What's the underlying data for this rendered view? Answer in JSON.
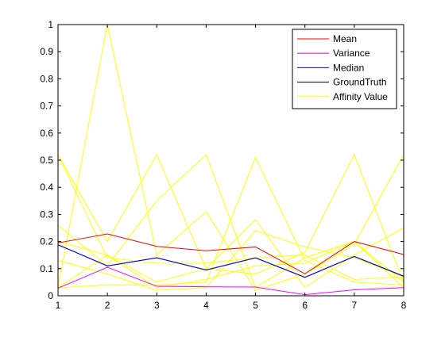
{
  "chart_data": {
    "type": "line",
    "x": [
      1,
      2,
      3,
      4,
      5,
      6,
      7,
      8
    ],
    "xlim": [
      1,
      8
    ],
    "ylim": [
      0,
      1
    ],
    "xticks": [
      1,
      2,
      3,
      4,
      5,
      6,
      7,
      8
    ],
    "yticks": [
      0,
      0.1,
      0.2,
      0.3,
      0.4,
      0.5,
      0.6,
      0.7,
      0.8,
      0.9,
      1
    ],
    "grid": false,
    "legend_position": "top-right",
    "series": [
      {
        "name": "Mean",
        "color": "#ff0000",
        "values": [
          0.195,
          0.228,
          0.182,
          0.166,
          0.18,
          0.081,
          0.2,
          0.152
        ]
      },
      {
        "name": "Variance",
        "color": "#ff00ff",
        "values": [
          0.028,
          0.105,
          0.035,
          0.033,
          0.032,
          0.004,
          0.022,
          0.03
        ]
      },
      {
        "name": "Median",
        "color": "#0000ff",
        "values": [
          0.188,
          0.11,
          0.14,
          0.095,
          0.14,
          0.068,
          0.145,
          0.072
        ]
      },
      {
        "name": "GroundTruth",
        "color": "#000000",
        "values": [
          0.188,
          0.11,
          0.14,
          0.095,
          0.14,
          0.068,
          0.145,
          0.072
        ]
      },
      {
        "name": "Affinity Value",
        "color": "#ffff00",
        "values": [
          0.52,
          0.2,
          0.52,
          0.1,
          0.08,
          0.16,
          0.52,
          0.05
        ]
      }
    ],
    "additional_lines": [
      {
        "color": "#ffff00",
        "values": [
          0.26,
          0.11,
          0.35,
          0.52,
          0.03,
          0.14,
          0.2,
          0.05
        ]
      },
      {
        "color": "#ffff00",
        "values": [
          0.03,
          1.0,
          0.15,
          0.31,
          0.02,
          0.08,
          0.19,
          0.52
        ]
      },
      {
        "color": "#ffff00",
        "values": [
          0.03,
          0.15,
          0.05,
          0.1,
          0.28,
          0.03,
          0.15,
          0.25
        ]
      },
      {
        "color": "#ffff00",
        "values": [
          0.13,
          0.08,
          0.02,
          0.03,
          0.24,
          0.18,
          0.14,
          0.07
        ]
      },
      {
        "color": "#ffff00",
        "values": [
          0.03,
          0.04,
          0.04,
          0.05,
          0.51,
          0.13,
          0.05,
          0.04
        ]
      },
      {
        "color": "#ffff00",
        "values": [
          0.52,
          0.14,
          0.12,
          0.12,
          0.14,
          0.15,
          0.06,
          0.07
        ]
      },
      {
        "color": "#ffff00",
        "values": [
          0.2,
          0.15,
          0.03,
          0.06,
          0.11,
          0.12,
          0.2,
          0.03
        ]
      }
    ]
  }
}
